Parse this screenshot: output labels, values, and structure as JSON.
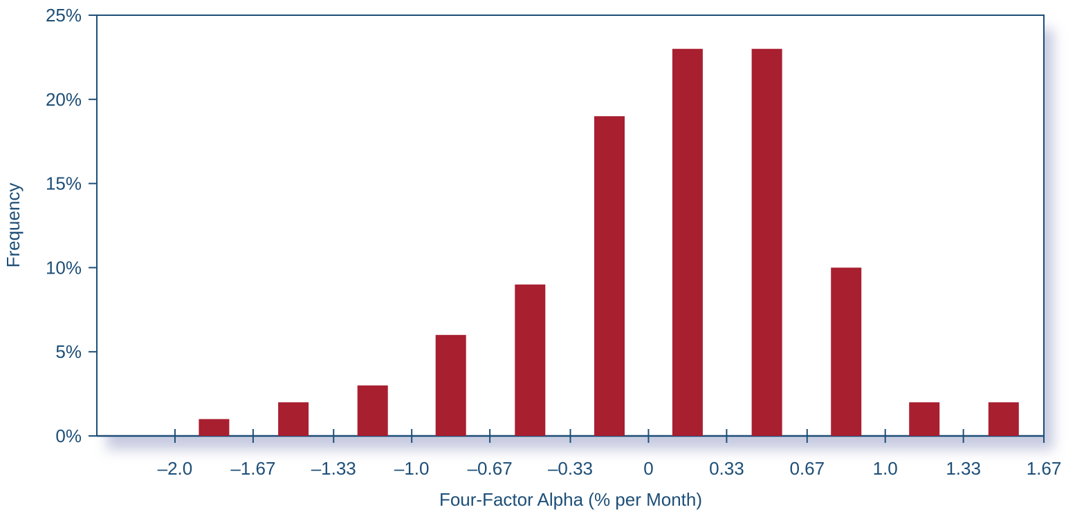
{
  "chart_data": {
    "type": "bar",
    "title": "",
    "xlabel": "Four-Factor Alpha (% per Month)",
    "ylabel": "Frequency",
    "ylim": [
      0,
      25
    ],
    "y_ticks": [
      "0%",
      "5%",
      "10%",
      "15%",
      "20%",
      "25%"
    ],
    "y_tick_values": [
      0,
      5,
      10,
      15,
      20,
      25
    ],
    "x_tick_labels": [
      "–2.0",
      "–1.67",
      "–1.33",
      "–1.0",
      "–0.67",
      "–0.33",
      "0",
      "0.33",
      "0.67",
      "1.0",
      "1.33",
      "1.67"
    ],
    "x_tick_values": [
      -2.0,
      -1.67,
      -1.33,
      -1.0,
      -0.67,
      -0.33,
      0,
      0.33,
      0.67,
      1.0,
      1.33,
      1.67
    ],
    "xlim": [
      -2.33,
      1.67
    ],
    "bins": [
      {
        "from": -2.0,
        "to": -1.67,
        "value": 1
      },
      {
        "from": -1.67,
        "to": -1.33,
        "value": 2
      },
      {
        "from": -1.33,
        "to": -1.0,
        "value": 3
      },
      {
        "from": -1.0,
        "to": -0.67,
        "value": 6
      },
      {
        "from": -0.67,
        "to": -0.33,
        "value": 9
      },
      {
        "from": -0.33,
        "to": 0,
        "value": 19
      },
      {
        "from": 0,
        "to": 0.33,
        "value": 23
      },
      {
        "from": 0.33,
        "to": 0.67,
        "value": 23
      },
      {
        "from": 0.67,
        "to": 1.0,
        "value": 10
      },
      {
        "from": 1.0,
        "to": 1.33,
        "value": 2
      },
      {
        "from": 1.33,
        "to": 1.67,
        "value": 2
      }
    ],
    "grid": false,
    "colors": {
      "bar": "#a81f30",
      "axis": "#1d4e77",
      "text": "#1d4e77",
      "shadow": "#c7cbe0"
    }
  }
}
